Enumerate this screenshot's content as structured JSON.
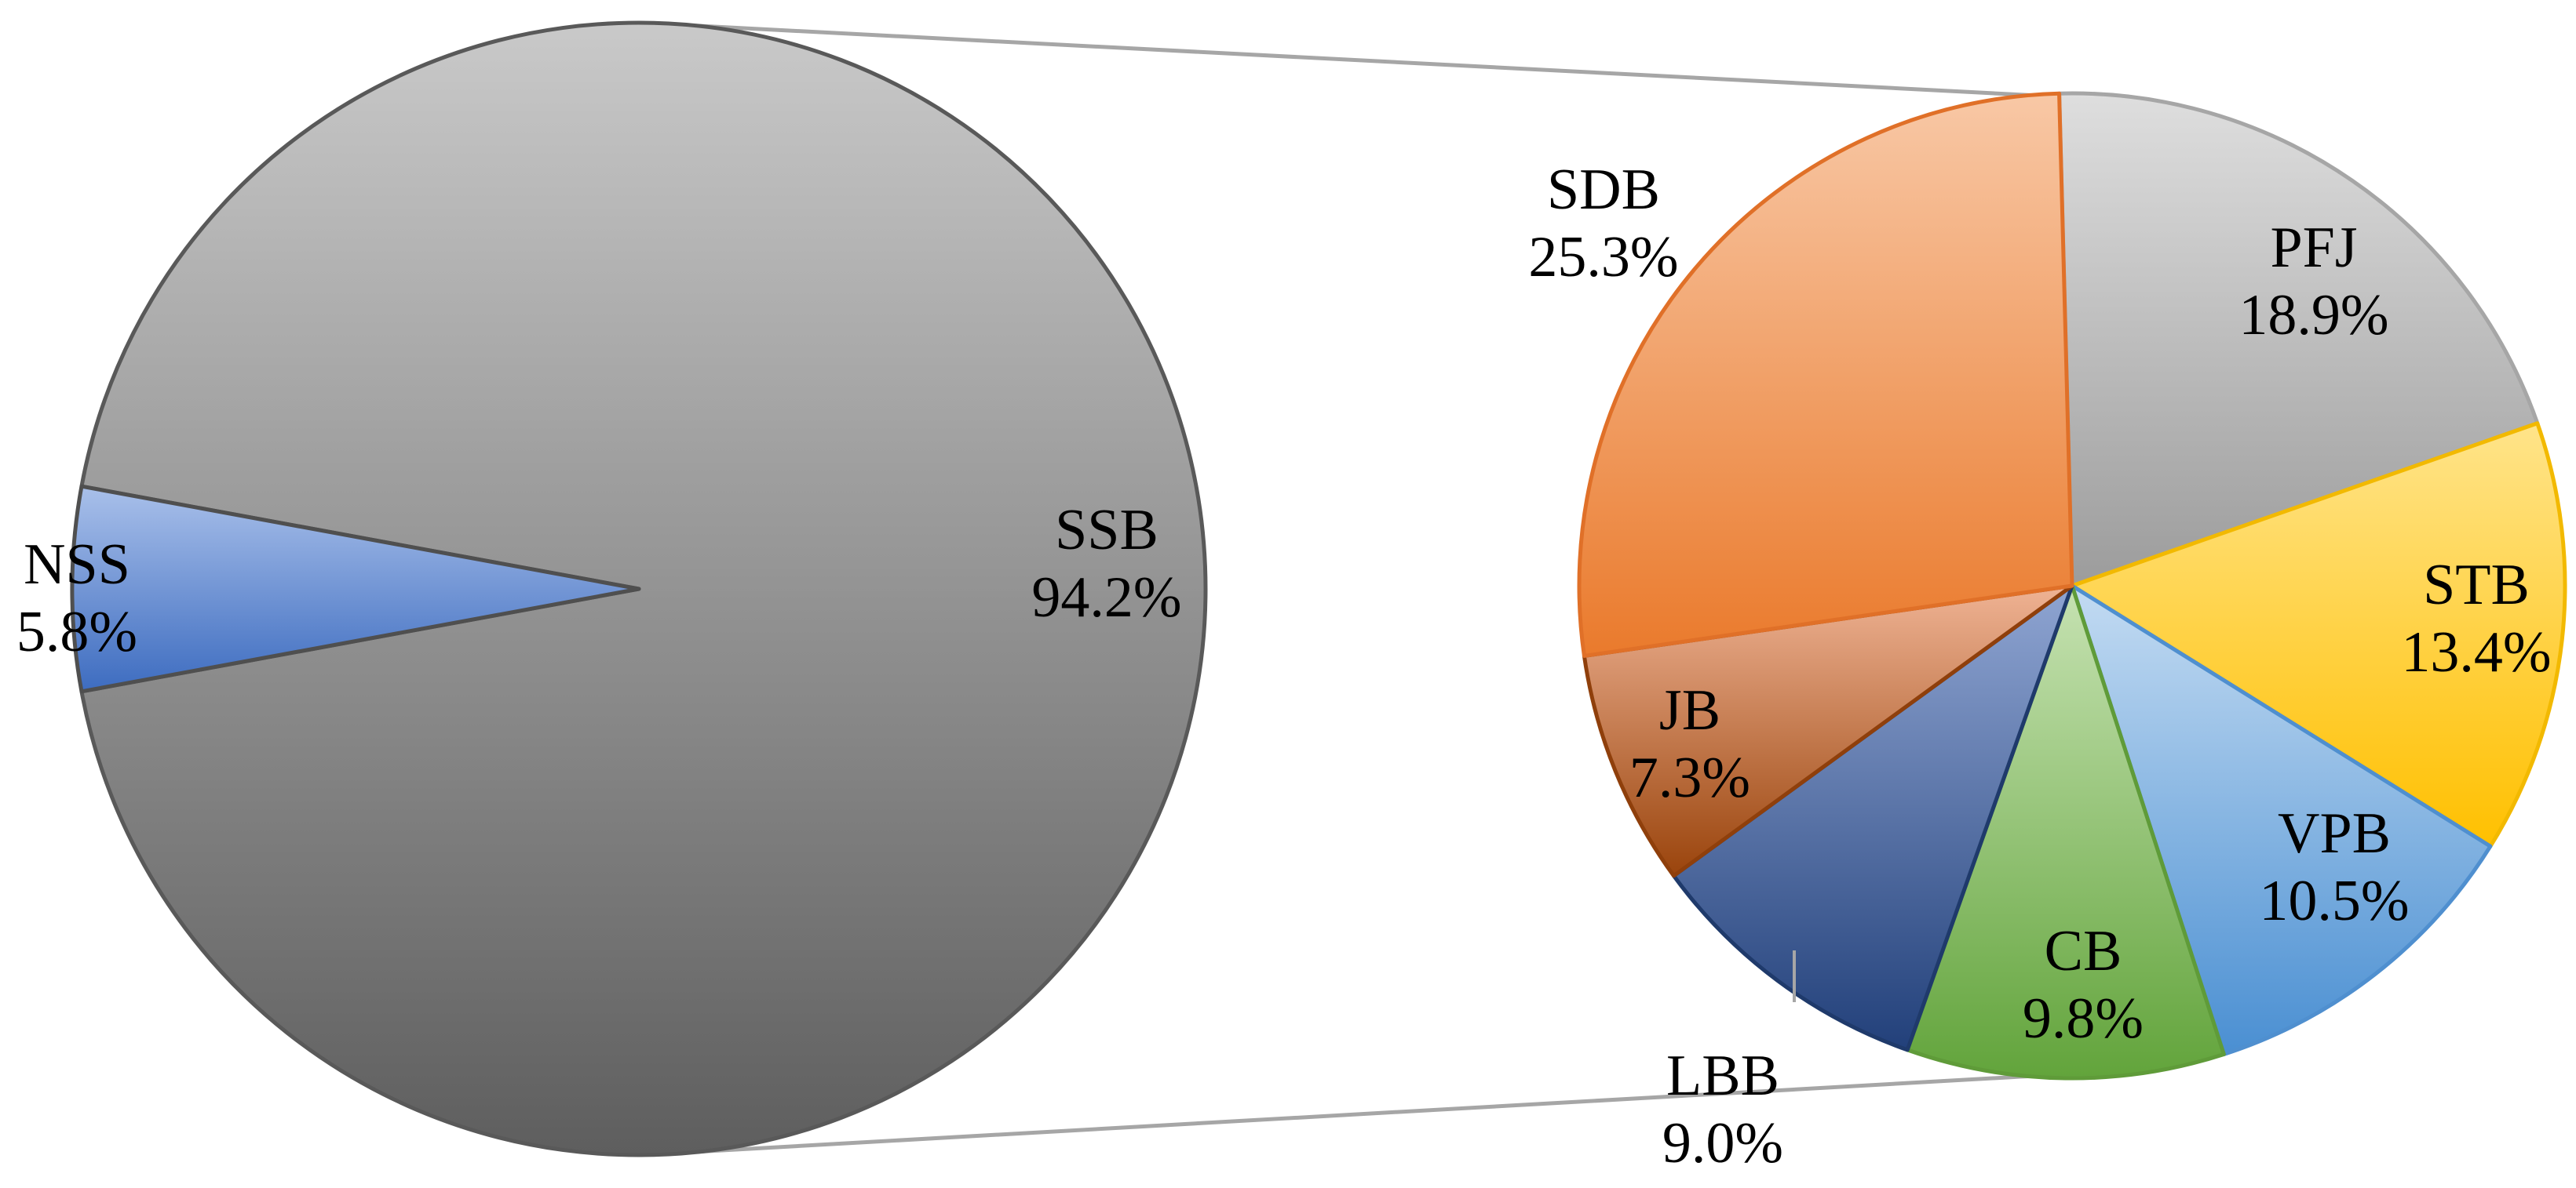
{
  "chart_data": {
    "type": "pie",
    "variant": "pie-of-pie",
    "main_pie": {
      "slices": [
        {
          "label": "SSB",
          "value": 94.2,
          "value_text": "94.2%",
          "color": "#8c8c8c",
          "grad": [
            "#c9c9c9",
            "#5e5e5e"
          ],
          "stroke": "#595959"
        },
        {
          "label": "NSS",
          "value": 5.8,
          "value_text": "5.8%",
          "color": "#4472c4",
          "grad": [
            "#a9c0ea",
            "#3d6cc0"
          ],
          "stroke": "#4f4f4f",
          "expanded": true
        }
      ]
    },
    "secondary_pie": {
      "slices": [
        {
          "label": "PFJ",
          "value": 18.9,
          "value_text": "18.9%",
          "color": "#a5a5a5",
          "grad": [
            "#dedede",
            "#9c9c9c"
          ],
          "stroke": "#a6a6a6"
        },
        {
          "label": "STB",
          "value": 13.4,
          "value_text": "13.4%",
          "color": "#ffc000",
          "grad": [
            "#ffe48a",
            "#ffc000"
          ],
          "stroke": "#f2b900"
        },
        {
          "label": "VPB",
          "value": 10.5,
          "value_text": "10.5%",
          "color": "#5b9bd5",
          "grad": [
            "#c3dbf2",
            "#4a8fd2"
          ],
          "stroke": "#4f8fcf"
        },
        {
          "label": "CB",
          "value": 9.8,
          "value_text": "9.8%",
          "color": "#70ad47",
          "grad": [
            "#c6e2b2",
            "#62a43b"
          ],
          "stroke": "#5f9b39"
        },
        {
          "label": "LBB",
          "value": 9.0,
          "value_text": "9.0%",
          "color": "#264478",
          "grad": [
            "#8fa5d2",
            "#22407a"
          ],
          "stroke": "#1f3a6b"
        },
        {
          "label": "JB",
          "value": 7.3,
          "value_text": "7.3%",
          "color": "#9e480e",
          "grad": [
            "#efb394",
            "#9a440c"
          ],
          "stroke": "#8f3f0b"
        },
        {
          "label": "SDB",
          "value": 25.3,
          "value_text": "25.3%",
          "color": "#ed7d31",
          "grad": [
            "#f8c8a6",
            "#ea7a2c"
          ],
          "stroke": "#e07028"
        }
      ]
    },
    "connector_color": "#a6a6a6",
    "legend": "none"
  }
}
